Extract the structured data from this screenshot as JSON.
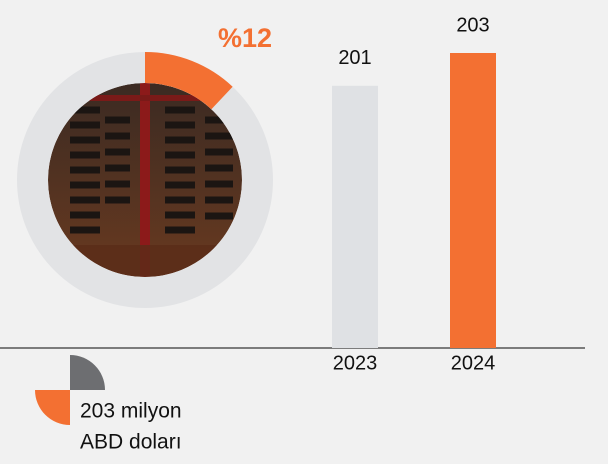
{
  "chart_data": [
    {
      "type": "pie",
      "values": [
        12
      ],
      "value_labels": [
        "%12"
      ],
      "color": "#f37032",
      "track_color": "#e2e3e5"
    },
    {
      "type": "bar",
      "categories": [
        "2023",
        "2024"
      ],
      "values": [
        201,
        203
      ],
      "colors": [
        "#dfe1e4",
        "#f37032"
      ],
      "ylim": [
        185,
        203
      ]
    }
  ],
  "legend_text": [
    "203 milyon",
    "ABD doları"
  ]
}
